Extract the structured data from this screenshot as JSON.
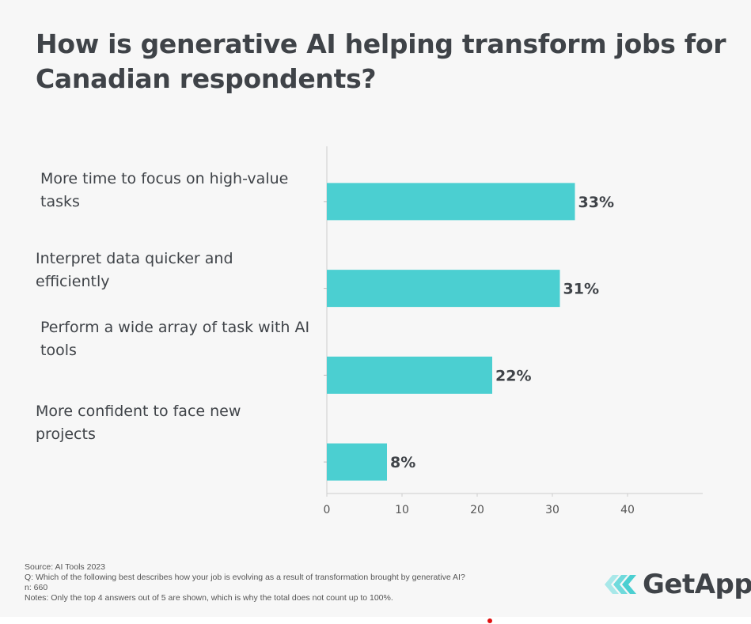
{
  "title": "How is generative AI helping transform jobs for Canadian respondents?",
  "chart_data": {
    "type": "bar",
    "orientation": "horizontal",
    "categories": [
      "More time to focus on high-value tasks",
      "Interpret data quicker and efficiently",
      "Perform a wide array of task with AI tools",
      "More confident to face new projects"
    ],
    "values": [
      33,
      31,
      22,
      8
    ],
    "data_labels": [
      "33%",
      "31%",
      "22%",
      "8%"
    ],
    "xlim": [
      0,
      50
    ],
    "xticks": [
      0,
      10,
      20,
      30,
      40
    ],
    "grid": false,
    "bar_color": "#4bcfd1"
  },
  "footer": {
    "source": "Source: AI Tools 2023",
    "question": "Q: Which of the following best describes how your job is evolving as a result of transformation brought by generative AI?",
    "n": "n: 660",
    "notes": "Notes: Only the top 4 answers out of 5 are shown, which is why the total does not count up to 100%."
  },
  "logo": {
    "text": "GetApp",
    "icon": "getapp-chevrons-icon",
    "color": "#4bcfd1"
  }
}
